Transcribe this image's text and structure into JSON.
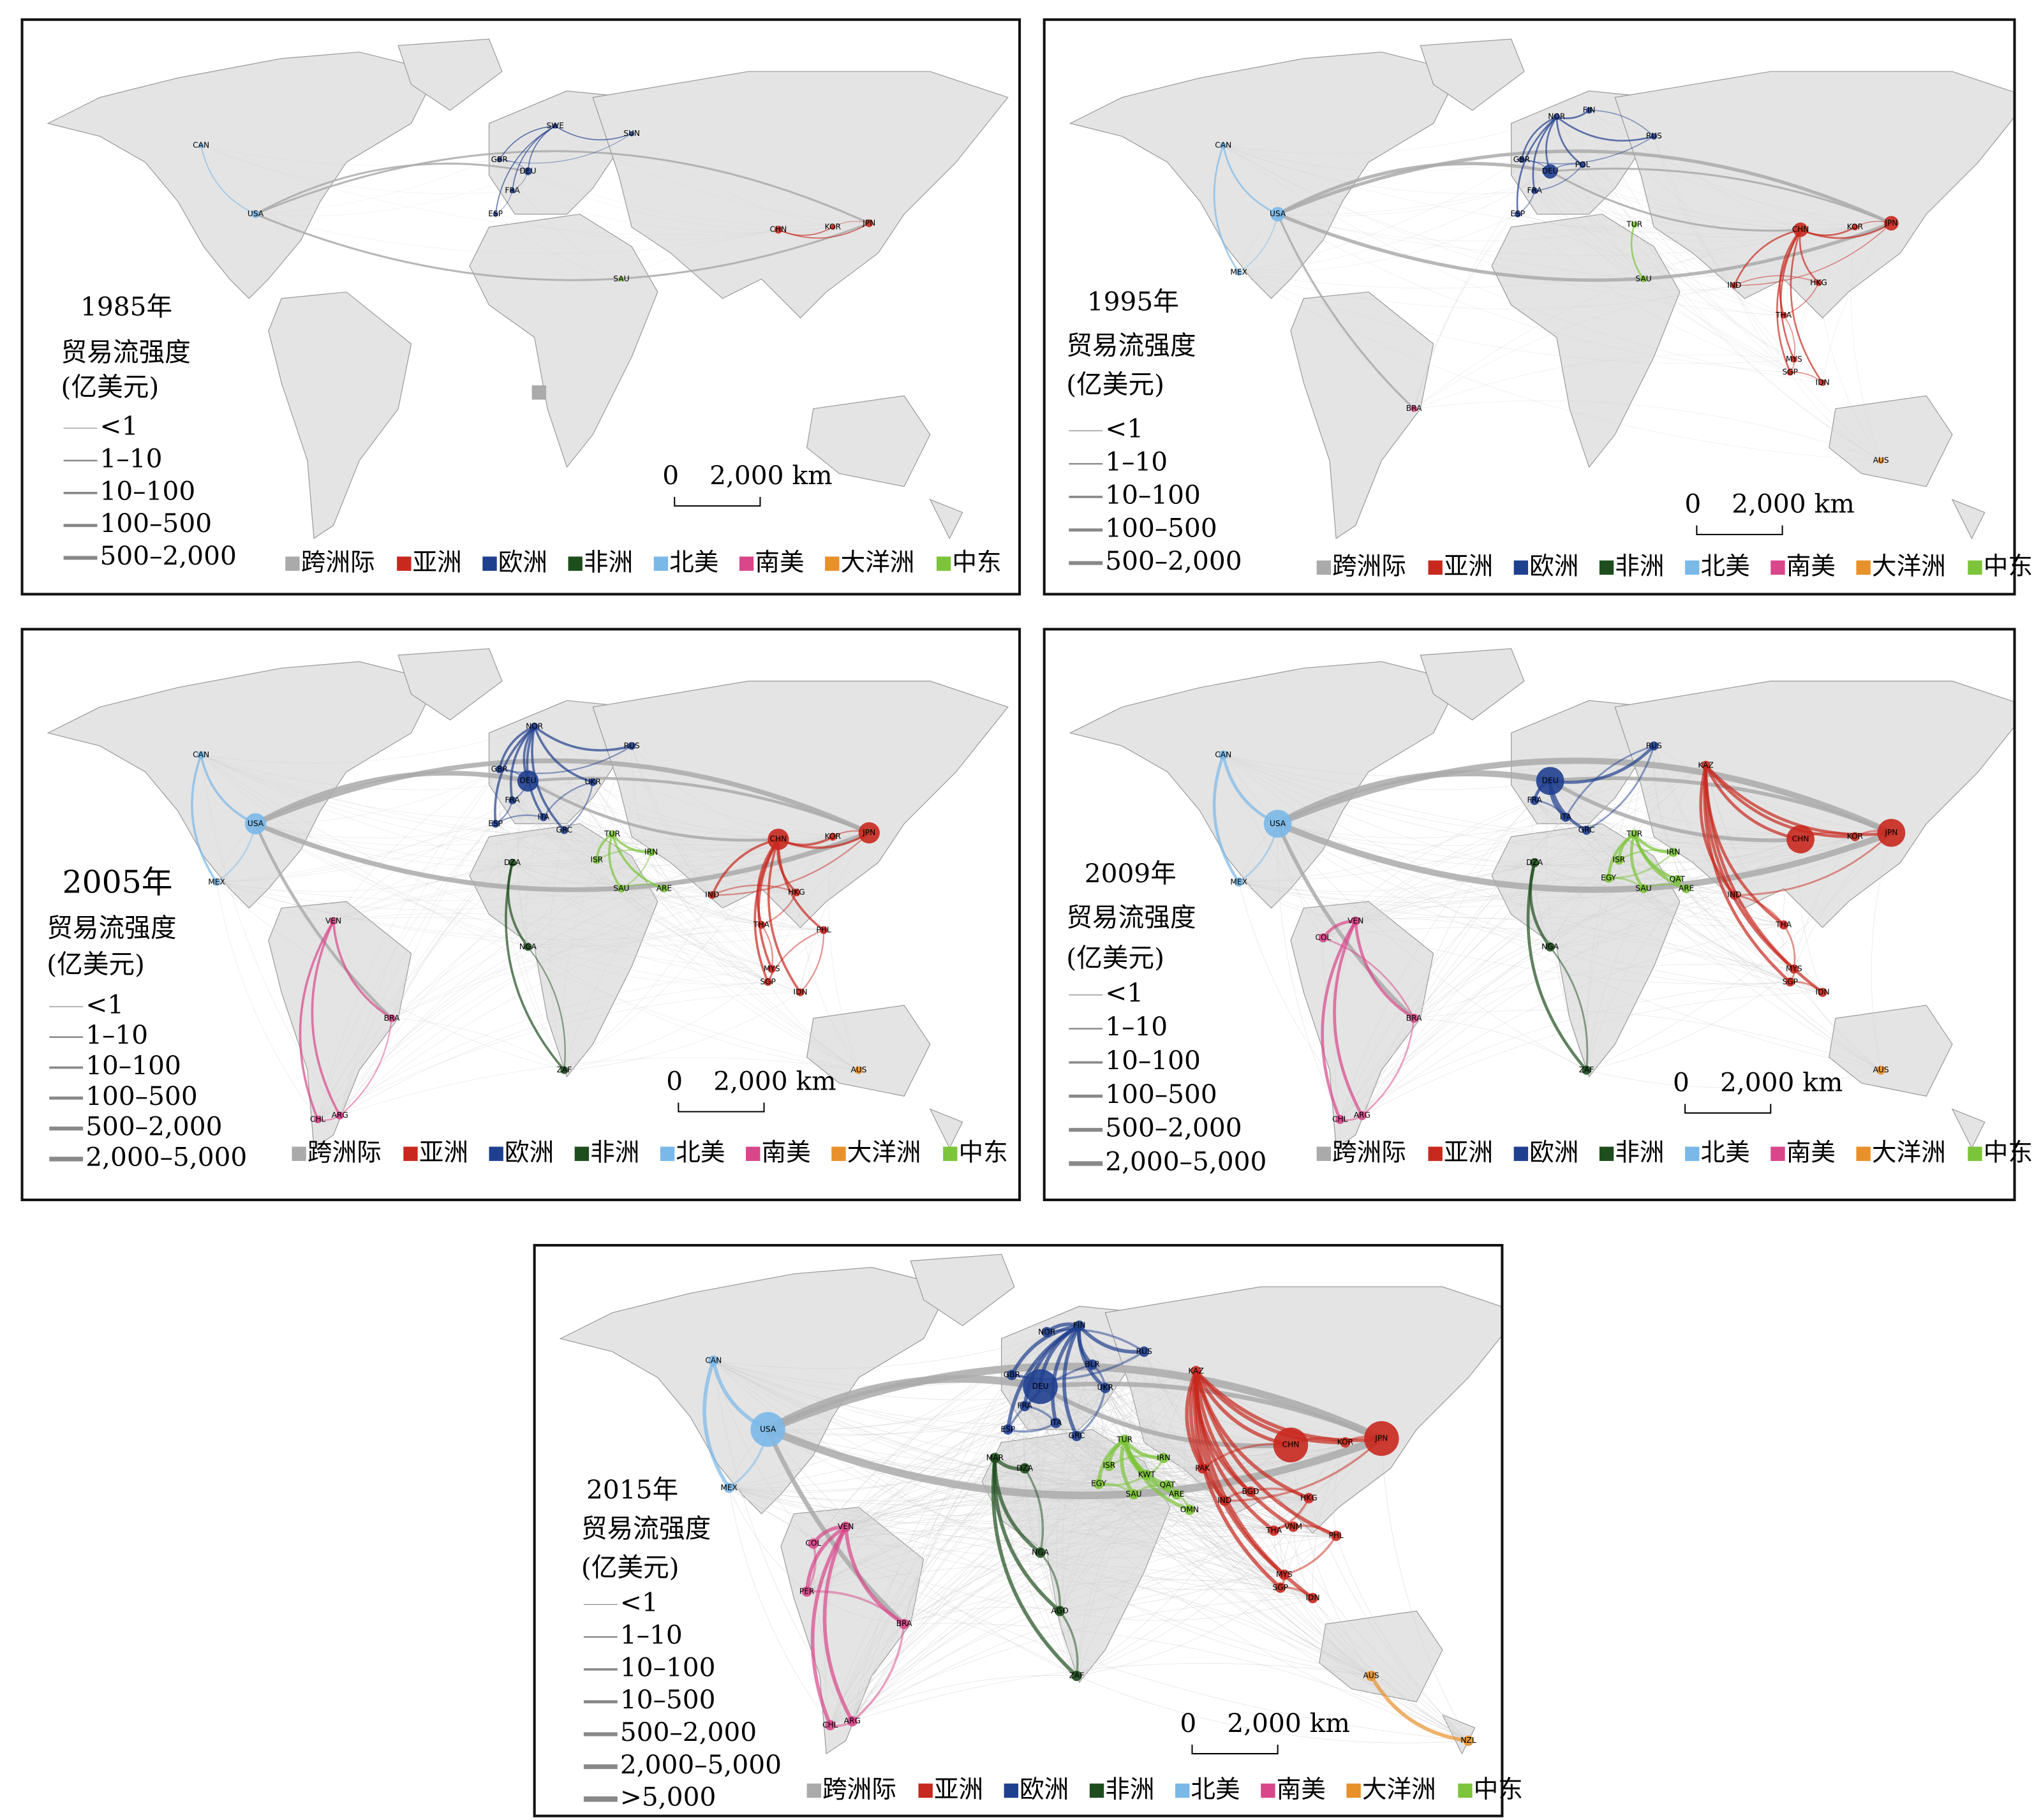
{
  "regions": [
    {
      "name": "跨洲际",
      "color": "#aaaaaa"
    },
    {
      "name": "亚洲",
      "color": "#c8281e"
    },
    {
      "name": "欧洲",
      "color": "#1f3f8f"
    },
    {
      "name": "非洲",
      "color": "#1e4d1e"
    },
    {
      "name": "北美",
      "color": "#7ab8e8"
    },
    {
      "name": "南美",
      "color": "#d9468a"
    },
    {
      "name": "大洋洲",
      "color": "#e8902a"
    },
    {
      "name": "中东",
      "color": "#7cc43a"
    }
  ],
  "scale": {
    "start": "0",
    "end": "2,000 km"
  },
  "legend_title": "贸易流强度",
  "legend_unit": "(亿美元)",
  "panels": [
    {
      "title": "1985年",
      "levels": [
        "<1",
        "1–10",
        "10–100",
        "100–500",
        "500–2,000"
      ],
      "countries": [
        {
          "code": "CAN",
          "color": "#7ab8e8"
        },
        {
          "code": "USA",
          "color": "#7ab8e8"
        },
        {
          "code": "SWE",
          "color": "#1f3f8f"
        },
        {
          "code": "SUN",
          "color": "#1f3f8f"
        },
        {
          "code": "GBR",
          "color": "#1f3f8f"
        },
        {
          "code": "DEU",
          "color": "#1f3f8f"
        },
        {
          "code": "FRA",
          "color": "#1f3f8f"
        },
        {
          "code": "ESP",
          "color": "#1f3f8f"
        },
        {
          "code": "CHN",
          "color": "#c8281e"
        },
        {
          "code": "KOR",
          "color": "#c8281e"
        },
        {
          "code": "JPN",
          "color": "#c8281e"
        },
        {
          "code": "SAU",
          "color": "#7cc43a"
        }
      ]
    },
    {
      "title": "1995年",
      "levels": [
        "<1",
        "1–10",
        "10–100",
        "100–500",
        "500–2,000"
      ],
      "countries": [
        {
          "code": "CAN",
          "color": "#7ab8e8"
        },
        {
          "code": "USA",
          "color": "#7ab8e8"
        },
        {
          "code": "MEX",
          "color": "#7ab8e8"
        },
        {
          "code": "NOR",
          "color": "#1f3f8f"
        },
        {
          "code": "FIN",
          "color": "#1f3f8f"
        },
        {
          "code": "RUS",
          "color": "#1f3f8f"
        },
        {
          "code": "GBR",
          "color": "#1f3f8f"
        },
        {
          "code": "DEU",
          "color": "#1f3f8f"
        },
        {
          "code": "POL",
          "color": "#1f3f8f"
        },
        {
          "code": "FRA",
          "color": "#1f3f8f"
        },
        {
          "code": "ESP",
          "color": "#1f3f8f"
        },
        {
          "code": "TUR",
          "color": "#7cc43a"
        },
        {
          "code": "SAU",
          "color": "#7cc43a"
        },
        {
          "code": "CHN",
          "color": "#c8281e"
        },
        {
          "code": "KOR",
          "color": "#c8281e"
        },
        {
          "code": "JPN",
          "color": "#c8281e"
        },
        {
          "code": "IND",
          "color": "#c8281e"
        },
        {
          "code": "HKG",
          "color": "#c8281e"
        },
        {
          "code": "THA",
          "color": "#c8281e"
        },
        {
          "code": "MYS",
          "color": "#c8281e"
        },
        {
          "code": "SGP",
          "color": "#c8281e"
        },
        {
          "code": "IDN",
          "color": "#c8281e"
        },
        {
          "code": "AUS",
          "color": "#e8902a"
        },
        {
          "code": "BRA",
          "color": "#d9468a"
        }
      ]
    },
    {
      "title": "2005年",
      "levels": [
        "<1",
        "1–10",
        "10–100",
        "100–500",
        "500–2,000",
        "2,000–5,000"
      ],
      "countries": [
        {
          "code": "CAN",
          "color": "#7ab8e8"
        },
        {
          "code": "USA",
          "color": "#7ab8e8"
        },
        {
          "code": "MEX",
          "color": "#7ab8e8"
        },
        {
          "code": "NOR",
          "color": "#1f3f8f"
        },
        {
          "code": "RUS",
          "color": "#1f3f8f"
        },
        {
          "code": "GBR",
          "color": "#1f3f8f"
        },
        {
          "code": "DEU",
          "color": "#1f3f8f"
        },
        {
          "code": "FRA",
          "color": "#1f3f8f"
        },
        {
          "code": "ESP",
          "color": "#1f3f8f"
        },
        {
          "code": "ITA",
          "color": "#1f3f8f"
        },
        {
          "code": "UKR",
          "color": "#1f3f8f"
        },
        {
          "code": "GRC",
          "color": "#1f3f8f"
        },
        {
          "code": "TUR",
          "color": "#7cc43a"
        },
        {
          "code": "DZA",
          "color": "#1e4d1e"
        },
        {
          "code": "ISR",
          "color": "#7cc43a"
        },
        {
          "code": "IRN",
          "color": "#7cc43a"
        },
        {
          "code": "SAU",
          "color": "#7cc43a"
        },
        {
          "code": "ARE",
          "color": "#7cc43a"
        },
        {
          "code": "NGA",
          "color": "#1e4d1e"
        },
        {
          "code": "ZAF",
          "color": "#1e4d1e"
        },
        {
          "code": "CHN",
          "color": "#c8281e"
        },
        {
          "code": "KOR",
          "color": "#c8281e"
        },
        {
          "code": "JPN",
          "color": "#c8281e"
        },
        {
          "code": "IND",
          "color": "#c8281e"
        },
        {
          "code": "HKG",
          "color": "#c8281e"
        },
        {
          "code": "THA",
          "color": "#c8281e"
        },
        {
          "code": "MYS",
          "color": "#c8281e"
        },
        {
          "code": "SGP",
          "color": "#c8281e"
        },
        {
          "code": "PHL",
          "color": "#c8281e"
        },
        {
          "code": "IDN",
          "color": "#c8281e"
        },
        {
          "code": "AUS",
          "color": "#e8902a"
        },
        {
          "code": "VEN",
          "color": "#d9468a"
        },
        {
          "code": "BRA",
          "color": "#d9468a"
        },
        {
          "code": "ARG",
          "color": "#d9468a"
        },
        {
          "code": "CHL",
          "color": "#d9468a"
        }
      ]
    },
    {
      "title": "2009年",
      "levels": [
        "<1",
        "1–10",
        "10–100",
        "100–500",
        "500–2,000",
        "2,000–5,000"
      ],
      "countries": [
        {
          "code": "CAN",
          "color": "#7ab8e8"
        },
        {
          "code": "USA",
          "color": "#7ab8e8"
        },
        {
          "code": "MEX",
          "color": "#7ab8e8"
        },
        {
          "code": "DEU",
          "color": "#1f3f8f"
        },
        {
          "code": "FRA",
          "color": "#1f3f8f"
        },
        {
          "code": "ITA",
          "color": "#1f3f8f"
        },
        {
          "code": "RUS",
          "color": "#1f3f8f"
        },
        {
          "code": "KAZ",
          "color": "#c8281e"
        },
        {
          "code": "GRC",
          "color": "#1f3f8f"
        },
        {
          "code": "TUR",
          "color": "#7cc43a"
        },
        {
          "code": "DZA",
          "color": "#1e4d1e"
        },
        {
          "code": "ISR",
          "color": "#7cc43a"
        },
        {
          "code": "IRN",
          "color": "#7cc43a"
        },
        {
          "code": "EGY",
          "color": "#7cc43a"
        },
        {
          "code": "SAU",
          "color": "#7cc43a"
        },
        {
          "code": "ARE",
          "color": "#7cc43a"
        },
        {
          "code": "QAT",
          "color": "#7cc43a"
        },
        {
          "code": "NGA",
          "color": "#1e4d1e"
        },
        {
          "code": "ZAF",
          "color": "#1e4d1e"
        },
        {
          "code": "CHN",
          "color": "#c8281e"
        },
        {
          "code": "KOR",
          "color": "#c8281e"
        },
        {
          "code": "JPN",
          "color": "#c8281e"
        },
        {
          "code": "IND",
          "color": "#c8281e"
        },
        {
          "code": "THA",
          "color": "#c8281e"
        },
        {
          "code": "MYS",
          "color": "#c8281e"
        },
        {
          "code": "SGP",
          "color": "#c8281e"
        },
        {
          "code": "IDN",
          "color": "#c8281e"
        },
        {
          "code": "AUS",
          "color": "#e8902a"
        },
        {
          "code": "VEN",
          "color": "#d9468a"
        },
        {
          "code": "COL",
          "color": "#d9468a"
        },
        {
          "code": "BRA",
          "color": "#d9468a"
        },
        {
          "code": "ARG",
          "color": "#d9468a"
        },
        {
          "code": "CHL",
          "color": "#d9468a"
        }
      ]
    },
    {
      "title": "2015年",
      "levels": [
        "<1",
        "1–10",
        "10–100",
        "10–500",
        "500–2,000",
        "2,000–5,000",
        ">5,000"
      ],
      "countries": [
        {
          "code": "CAN",
          "color": "#7ab8e8"
        },
        {
          "code": "USA",
          "color": "#7ab8e8"
        },
        {
          "code": "MEX",
          "color": "#7ab8e8"
        },
        {
          "code": "FIN",
          "color": "#1f3f8f"
        },
        {
          "code": "NOR",
          "color": "#1f3f8f"
        },
        {
          "code": "RUS",
          "color": "#1f3f8f"
        },
        {
          "code": "GBR",
          "color": "#1f3f8f"
        },
        {
          "code": "DEU",
          "color": "#1f3f8f"
        },
        {
          "code": "FRA",
          "color": "#1f3f8f"
        },
        {
          "code": "ITA",
          "color": "#1f3f8f"
        },
        {
          "code": "ESP",
          "color": "#1f3f8f"
        },
        {
          "code": "BLR",
          "color": "#1f3f8f"
        },
        {
          "code": "UKR",
          "color": "#1f3f8f"
        },
        {
          "code": "GRC",
          "color": "#1f3f8f"
        },
        {
          "code": "KAZ",
          "color": "#c8281e"
        },
        {
          "code": "TUR",
          "color": "#7cc43a"
        },
        {
          "code": "MAR",
          "color": "#1e4d1e"
        },
        {
          "code": "DZA",
          "color": "#1e4d1e"
        },
        {
          "code": "ISR",
          "color": "#7cc43a"
        },
        {
          "code": "IRN",
          "color": "#7cc43a"
        },
        {
          "code": "KWT",
          "color": "#7cc43a"
        },
        {
          "code": "EGY",
          "color": "#7cc43a"
        },
        {
          "code": "SAU",
          "color": "#7cc43a"
        },
        {
          "code": "QAT",
          "color": "#7cc43a"
        },
        {
          "code": "ARE",
          "color": "#7cc43a"
        },
        {
          "code": "OMN",
          "color": "#7cc43a"
        },
        {
          "code": "PAK",
          "color": "#c8281e"
        },
        {
          "code": "NGA",
          "color": "#1e4d1e"
        },
        {
          "code": "AGO",
          "color": "#1e4d1e"
        },
        {
          "code": "ZAF",
          "color": "#1e4d1e"
        },
        {
          "code": "CHN",
          "color": "#c8281e"
        },
        {
          "code": "KOR",
          "color": "#c8281e"
        },
        {
          "code": "JPN",
          "color": "#c8281e"
        },
        {
          "code": "IND",
          "color": "#c8281e"
        },
        {
          "code": "BGD",
          "color": "#c8281e"
        },
        {
          "code": "HKG",
          "color": "#c8281e"
        },
        {
          "code": "THA",
          "color": "#c8281e"
        },
        {
          "code": "VNM",
          "color": "#c8281e"
        },
        {
          "code": "PHL",
          "color": "#c8281e"
        },
        {
          "code": "MYS",
          "color": "#c8281e"
        },
        {
          "code": "SGP",
          "color": "#c8281e"
        },
        {
          "code": "IDN",
          "color": "#c8281e"
        },
        {
          "code": "AUS",
          "color": "#e8902a"
        },
        {
          "code": "NZL",
          "color": "#e8902a"
        },
        {
          "code": "VEN",
          "color": "#d9468a"
        },
        {
          "code": "COL",
          "color": "#d9468a"
        },
        {
          "code": "PER",
          "color": "#d9468a"
        },
        {
          "code": "BRA",
          "color": "#d9468a"
        },
        {
          "code": "ARG",
          "color": "#d9468a"
        },
        {
          "code": "CHL",
          "color": "#d9468a"
        }
      ]
    }
  ]
}
